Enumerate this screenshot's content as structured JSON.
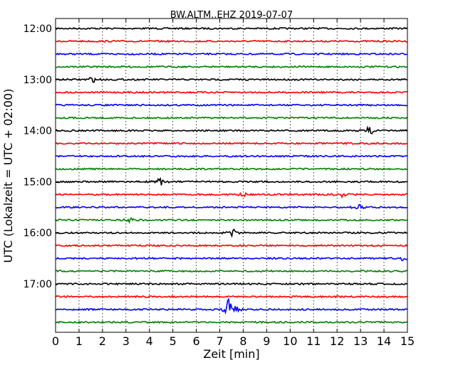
{
  "chart_data": {
    "type": "line",
    "title": "BW.ALTM..EHZ 2019-07-07",
    "xlabel": "Zeit  [min]",
    "ylabel": "UTC (Lokalzeit = UTC + 02:00)",
    "xlim": [
      0,
      15
    ],
    "xticks": [
      "0",
      "1",
      "2",
      "3",
      "4",
      "5",
      "6",
      "7",
      "8",
      "9",
      "10",
      "11",
      "12",
      "13",
      "14",
      "15"
    ],
    "yticks": [
      "12:00",
      "13:00",
      "14:00",
      "15:00",
      "16:00",
      "17:00"
    ],
    "grid": "vertical dotted",
    "trace_minutes": 15,
    "colors": [
      "#000000",
      "#ff0000",
      "#0000ff",
      "#008000"
    ],
    "series": [
      {
        "start": "12:00",
        "color": "#000000"
      },
      {
        "start": "12:15",
        "color": "#ff0000"
      },
      {
        "start": "12:30",
        "color": "#0000ff"
      },
      {
        "start": "12:45",
        "color": "#008000"
      },
      {
        "start": "13:00",
        "color": "#000000",
        "events": [
          {
            "t": 1.55,
            "amp": 4
          }
        ]
      },
      {
        "start": "13:15",
        "color": "#ff0000"
      },
      {
        "start": "13:30",
        "color": "#0000ff"
      },
      {
        "start": "13:45",
        "color": "#008000"
      },
      {
        "start": "14:00",
        "color": "#000000",
        "events": [
          {
            "t": 13.4,
            "amp": 5
          }
        ]
      },
      {
        "start": "14:15",
        "color": "#ff0000"
      },
      {
        "start": "14:30",
        "color": "#0000ff"
      },
      {
        "start": "14:45",
        "color": "#008000"
      },
      {
        "start": "15:00",
        "color": "#000000",
        "events": [
          {
            "t": 4.45,
            "amp": 5
          }
        ]
      },
      {
        "start": "15:15",
        "color": "#ff0000",
        "events": [
          {
            "t": 8.0,
            "amp": 4
          },
          {
            "t": 12.3,
            "amp": 4
          }
        ]
      },
      {
        "start": "15:30",
        "color": "#0000ff",
        "events": [
          {
            "t": 12.9,
            "amp": 4
          }
        ]
      },
      {
        "start": "15:45",
        "color": "#008000",
        "events": [
          {
            "t": 3.2,
            "amp": 4
          }
        ]
      },
      {
        "start": "16:00",
        "color": "#000000",
        "events": [
          {
            "t": 7.6,
            "amp": 5
          }
        ]
      },
      {
        "start": "16:15",
        "color": "#ff0000"
      },
      {
        "start": "16:30",
        "color": "#0000ff",
        "events": [
          {
            "t": 14.8,
            "amp": 4
          }
        ]
      },
      {
        "start": "16:45",
        "color": "#008000"
      },
      {
        "start": "17:00",
        "color": "#000000"
      },
      {
        "start": "17:15",
        "color": "#ff0000"
      },
      {
        "start": "17:30",
        "color": "#0000ff",
        "events": [
          {
            "t": 7.45,
            "amp": 18
          }
        ]
      },
      {
        "start": "17:45",
        "color": "#008000"
      }
    ]
  }
}
